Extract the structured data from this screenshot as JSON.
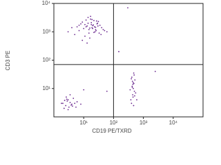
{
  "chart_data": {
    "type": "scatter",
    "xlabel": "CD19 PE/TXRD",
    "ylabel": "CD3 PE",
    "xscale": "log",
    "yscale": "log",
    "color": "#6b2a8f",
    "xlim": [
      1,
      100000
    ],
    "ylim": [
      1,
      10000
    ],
    "xticks": [
      {
        "value": 10,
        "label": "10¹"
      },
      {
        "value": 100,
        "label": "10²"
      },
      {
        "value": 1000,
        "label": "10³"
      },
      {
        "value": 10000,
        "label": "10⁴"
      }
    ],
    "yticks": [
      {
        "value": 10,
        "label": "10¹"
      },
      {
        "value": 100,
        "label": "10²"
      },
      {
        "value": 1000,
        "label": "10³"
      },
      {
        "value": 10000,
        "label": "10⁴"
      }
    ],
    "quadrant": {
      "x": 100,
      "y": 70
    },
    "x": [
      12,
      18,
      25,
      9,
      30,
      15,
      22,
      40,
      7,
      14,
      20,
      28,
      11,
      35,
      17,
      5,
      24,
      13,
      19,
      45,
      8,
      16,
      27,
      10,
      21,
      33,
      6,
      14,
      26,
      18,
      3,
      12,
      23,
      38,
      15,
      9,
      29,
      20,
      4,
      17,
      50,
      11,
      25,
      13,
      31,
      22,
      16,
      7,
      19,
      60,
      2,
      2.5,
      3,
      3.5,
      4,
      2.2,
      2.8,
      3.2,
      5,
      4.5,
      2.6,
      3.8,
      6,
      2.3,
      3,
      4.2,
      1.8,
      5.5,
      3.5,
      2.7,
      8,
      10,
      400,
      450,
      500,
      420,
      480,
      380,
      520,
      440,
      460,
      410,
      550,
      430,
      490,
      470,
      360,
      510,
      445,
      395,
      475,
      600,
      425,
      455,
      300,
      2500,
      150,
      60
    ],
    "values": [
      1500,
      1800,
      1200,
      2200,
      1600,
      900,
      2500,
      1400,
      1100,
      2000,
      1300,
      1900,
      700,
      1700,
      2800,
      800,
      1000,
      1600,
      1400,
      1200,
      1900,
      600,
      2400,
      1300,
      1750,
      900,
      1500,
      3200,
      1100,
      2100,
      1000,
      2600,
      1500,
      800,
      1200,
      500,
      2000,
      1650,
      1400,
      3500,
      1100,
      1800,
      1450,
      400,
      2300,
      950,
      1350,
      1700,
      2700,
      1000,
      3,
      2.5,
      4,
      3.2,
      2.8,
      2,
      3.6,
      2.2,
      3,
      4.5,
      5,
      2.6,
      3.4,
      3.8,
      1.8,
      2.4,
      3,
      2.2,
      6,
      4.2,
      2.8,
      9,
      3,
      5,
      8,
      12,
      15,
      4,
      20,
      6,
      10,
      25,
      7,
      18,
      30,
      2.5,
      9,
      5.5,
      14,
      22,
      35,
      4,
      11,
      16,
      7000,
      40,
      200,
      8
    ]
  }
}
